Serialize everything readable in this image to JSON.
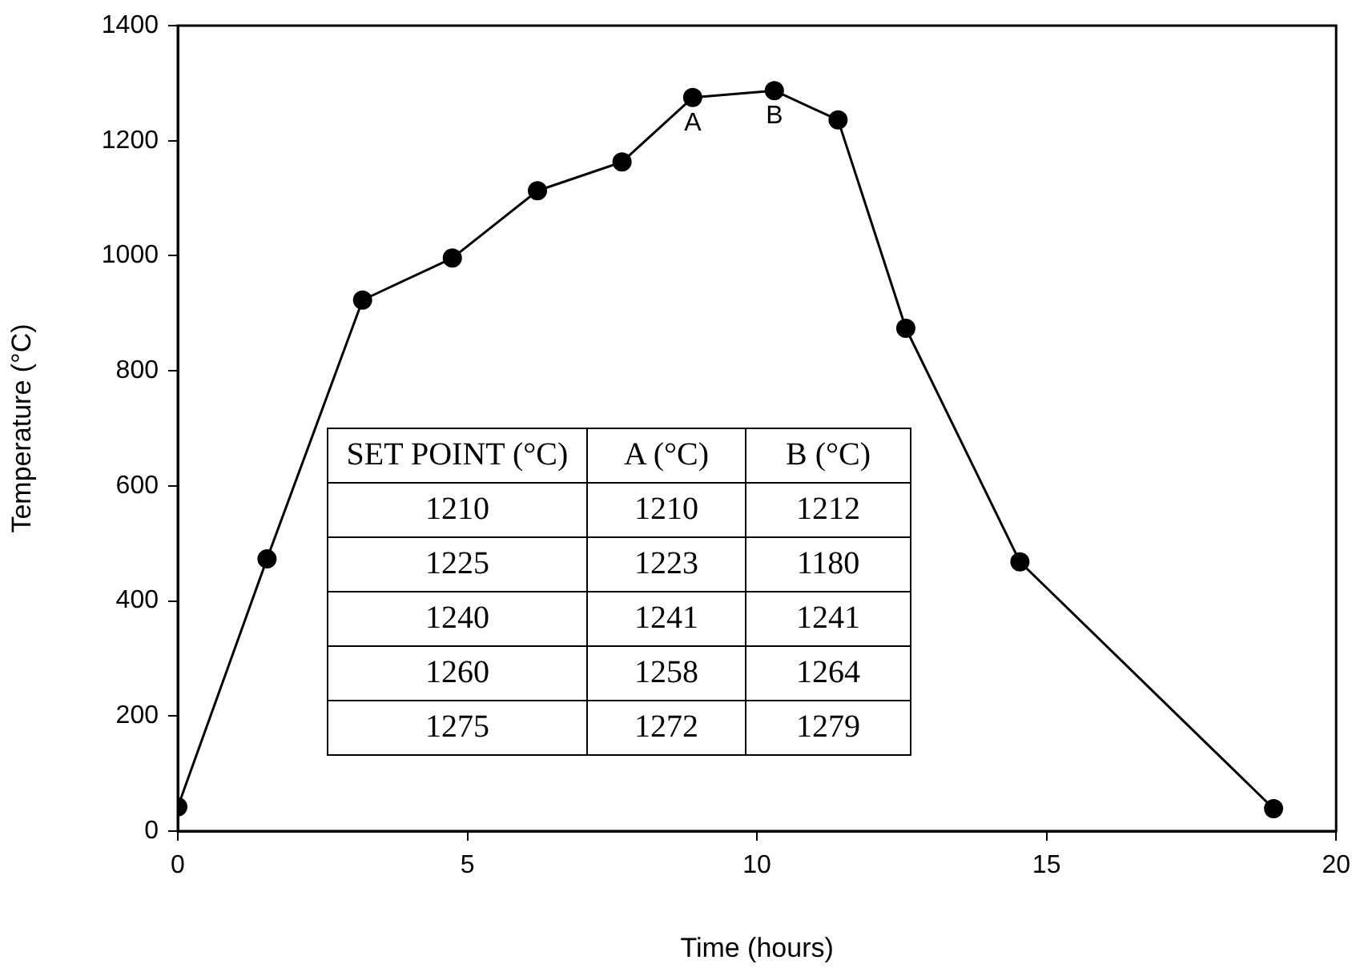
{
  "chart_data": {
    "type": "line",
    "xlabel": "Time (hours)",
    "ylabel": "Temperature (°C)",
    "x": [
      0,
      1.54,
      3.19,
      4.74,
      6.21,
      7.67,
      8.89,
      10.3,
      11.4,
      12.57,
      14.54,
      18.92
    ],
    "series": [
      {
        "color": "#000000",
        "values": [
          42,
          473,
          923,
          996,
          1113,
          1163,
          1275,
          1287,
          1236,
          874,
          468,
          39
        ]
      }
    ],
    "xlim": [
      0,
      20
    ],
    "xticks": [
      0,
      5,
      10,
      15,
      20
    ],
    "ylim": [
      0,
      1400
    ],
    "yticks": [
      0,
      200,
      400,
      600,
      800,
      1000,
      1200,
      1400
    ],
    "grid": false,
    "legend": false,
    "marker": "circle",
    "line_style": "solid",
    "annotations": [
      {
        "text": "A",
        "x": 8.89,
        "y": 1275
      },
      {
        "text": "B",
        "x": 10.3,
        "y": 1287
      },
      "SET POINT (°C)",
      "A (°C)",
      "B (°C)",
      "1210",
      "1210",
      "1212",
      "1225",
      "1223",
      "1180",
      "1240",
      "1241",
      "1241",
      "1260",
      "1258",
      "1264",
      "1275",
      "1272",
      "1279"
    ]
  }
}
